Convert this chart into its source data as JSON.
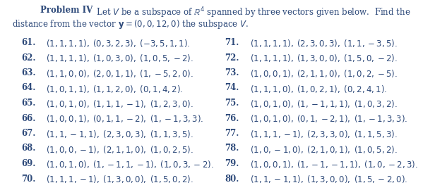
{
  "bg_color": "#ffffff",
  "text_color": "#2e4a7a",
  "font_size": 8.5,
  "title_bold": "Problem IV",
  "title_rest": "  Let $V$ be a subspace of $\\mathbb{R}^4$ spanned by three vectors given below.  Find the",
  "title_line2": "distance from the vector $\\mathbf{y} = (0, 0, 12, 0)$ the subspace $V$.",
  "left_items": [
    {
      "num": "61.",
      "text": "$(1, 1, 1, 1),\\; (0, 3, 2, 3),\\; (-3, 5, 1, 1).$"
    },
    {
      "num": "62.",
      "text": "$(1, 1, 1, 1),\\; (1, 0, 3, 0),\\; (1, 0, 5, -2).$"
    },
    {
      "num": "63.",
      "text": "$(1, 1, 0, 0),\\; (2, 0, 1, 1),\\; (1, -5, 2, 0).$"
    },
    {
      "num": "64.",
      "text": "$(1, 0, 1, 1),\\; (1, 1, 2, 0),\\; (0, 1, 4, 2).$"
    },
    {
      "num": "65.",
      "text": "$(1, 0, 1, 0),\\; (1, 1, 1, -1),\\; (1, 2, 3, 0).$"
    },
    {
      "num": "66.",
      "text": "$(1, 0, 0, 1),\\; (0, 1, 1, -2),\\; (1, -1, 3, 3).$"
    },
    {
      "num": "67.",
      "text": "$(1, 1, -1, 1),\\; (2, 3, 0, 3),\\; (1, 1, 3, 5).$"
    },
    {
      "num": "68.",
      "text": "$(1, 0, 0, -1),\\; (2, 1, 1, 0),\\; (1, 0, 2, 5).$"
    },
    {
      "num": "69.",
      "text": "$(1, 0, 1, 0),\\; (1, -1, 1, -1),\\; (1, 0, 3, -2).$"
    },
    {
      "num": "70.",
      "text": "$(1, 1, 1, -1),\\; (1, 3, 0, 0),\\; (1, 5, 0, 2).$"
    }
  ],
  "right_items": [
    {
      "num": "71.",
      "text": "$(1, 1, 1, 1),\\; (2, 3, 0, 3),\\; (1, 1, -3, 5).$"
    },
    {
      "num": "72.",
      "text": "$(1, 1, 1, 1),\\; (1, 3, 0, 0),\\; (1, 5, 0, -2).$"
    },
    {
      "num": "73.",
      "text": "$(1, 0, 0, 1),\\; (2, 1, 1, 0),\\; (1, 0, 2, -5).$"
    },
    {
      "num": "74.",
      "text": "$(1, 1, 1, 0),\\; (1, 0, 2, 1),\\; (0, 2, 4, 1).$"
    },
    {
      "num": "75.",
      "text": "$(1, 0, 1, 0),\\; (1, -1, 1, 1),\\; (1, 0, 3, 2).$"
    },
    {
      "num": "76.",
      "text": "$(1, 0, 1, 0),\\; (0, 1, -2, 1),\\; (1, -1, 3, 3).$"
    },
    {
      "num": "77.",
      "text": "$(1, 1, 1, -1),\\; (2, 3, 3, 0),\\; (1, 1, 5, 3).$"
    },
    {
      "num": "78.",
      "text": "$(1, 0, -1, 0),\\; (2, 1, 0, 1),\\; (1, 0, 5, 2).$"
    },
    {
      "num": "79.",
      "text": "$(1, 0, 0, 1),\\; (1, -1, -1, 1),\\; (1, 0, -2, 3).$"
    },
    {
      "num": "80.",
      "text": "$(1, 1, -1, 1),\\; (1, 3, 0, 0),\\; (1, 5, -2, 0).$"
    }
  ]
}
